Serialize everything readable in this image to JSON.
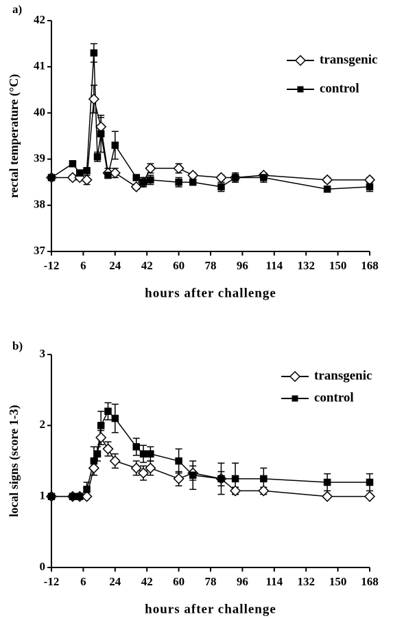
{
  "chart_data": [
    {
      "type": "line",
      "title": "a)",
      "ylabel": "rectal temperature (°C)",
      "xlabel": "hours after challenge",
      "xlim": [
        -12,
        168
      ],
      "xticks": [
        -12,
        6,
        24,
        42,
        60,
        78,
        96,
        114,
        132,
        150,
        168
      ],
      "ylim": [
        37,
        42
      ],
      "yticks": [
        37,
        38,
        39,
        40,
        41,
        42
      ],
      "legend": "upper right",
      "series": [
        {
          "name": "transgenic",
          "color": "#000000",
          "marker": "diamond",
          "x": [
            -12,
            0,
            4,
            8,
            12,
            16,
            20,
            24,
            36,
            40,
            44,
            60,
            68,
            84,
            92,
            108,
            144,
            168
          ],
          "values": [
            38.6,
            38.6,
            38.6,
            38.55,
            40.3,
            39.7,
            38.7,
            38.7,
            38.4,
            38.5,
            38.8,
            38.8,
            38.65,
            38.6,
            38.6,
            38.65,
            38.55,
            38.55
          ],
          "errors": [
            0.05,
            0.05,
            0.05,
            0.1,
            0.3,
            0.2,
            0.1,
            0.1,
            0.05,
            0.1,
            0.1,
            0.1,
            0.05,
            0.05,
            0.1,
            0.05,
            0.05,
            0.05
          ]
        },
        {
          "name": "control",
          "color": "#000000",
          "marker": "square",
          "x": [
            -12,
            0,
            4,
            8,
            12,
            14,
            16,
            20,
            24,
            36,
            40,
            44,
            60,
            68,
            84,
            92,
            108,
            144,
            168
          ],
          "values": [
            38.6,
            38.9,
            38.7,
            38.75,
            41.3,
            39.05,
            39.55,
            38.65,
            39.3,
            38.6,
            38.5,
            38.55,
            38.5,
            38.5,
            38.4,
            38.6,
            38.6,
            38.35,
            38.4
          ],
          "errors": [
            0.05,
            0.05,
            0.05,
            0.05,
            0.2,
            0.1,
            0.4,
            0.05,
            0.3,
            0.05,
            0.1,
            0.1,
            0.1,
            0.05,
            0.1,
            0.1,
            0.1,
            0.05,
            0.1
          ]
        }
      ]
    },
    {
      "type": "line",
      "title": "b)",
      "ylabel": "local signs (score 1-3)",
      "xlabel": "hours after challenge",
      "xlim": [
        -12,
        168
      ],
      "xticks": [
        -12,
        6,
        24,
        42,
        60,
        78,
        96,
        114,
        132,
        150,
        168
      ],
      "ylim": [
        0,
        3
      ],
      "yticks": [
        0,
        1,
        2,
        3
      ],
      "legend": "upper right",
      "series": [
        {
          "name": "transgenic",
          "color": "#000000",
          "marker": "diamond",
          "x": [
            -12,
            0,
            4,
            8,
            12,
            16,
            20,
            24,
            36,
            40,
            44,
            60,
            68,
            84,
            92,
            108,
            144,
            168
          ],
          "values": [
            1,
            1,
            1,
            1,
            1.4,
            1.83,
            1.67,
            1.5,
            1.4,
            1.33,
            1.4,
            1.25,
            1.33,
            1.25,
            1.08,
            1.08,
            1,
            1
          ],
          "errors": [
            0,
            0,
            0,
            0,
            0.1,
            0.1,
            0.1,
            0.1,
            0.1,
            0.1,
            0.1,
            0.1,
            0.1,
            0.1,
            0.05,
            0.05,
            0,
            0
          ]
        },
        {
          "name": "control",
          "color": "#000000",
          "marker": "square",
          "x": [
            -12,
            0,
            4,
            8,
            12,
            14,
            16,
            20,
            24,
            36,
            40,
            44,
            60,
            68,
            84,
            92,
            108,
            144,
            168
          ],
          "values": [
            1,
            1,
            1,
            1.1,
            1.5,
            1.6,
            2.0,
            2.2,
            2.1,
            1.7,
            1.6,
            1.6,
            1.5,
            1.3,
            1.25,
            1.25,
            1.25,
            1.2,
            1.2
          ],
          "errors": [
            0,
            0,
            0,
            0.1,
            0.2,
            0.1,
            0.2,
            0.12,
            0.2,
            0.12,
            0.12,
            0.1,
            0.17,
            0.2,
            0.22,
            0.22,
            0.15,
            0.12,
            0.12
          ]
        }
      ]
    }
  ]
}
